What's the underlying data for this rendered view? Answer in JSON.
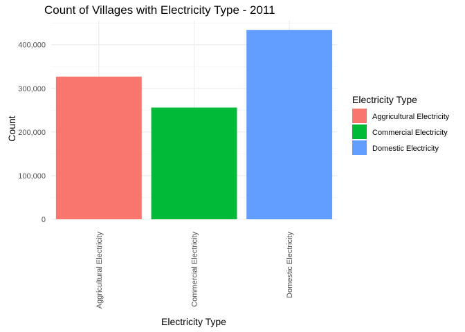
{
  "chart_data": {
    "type": "bar",
    "title": "Count of Villages with Electricity Type - 2011",
    "xlabel": "Electricity Type",
    "ylabel": "Count",
    "categories": [
      "Aggricultural Electricity",
      "Commercial Electricity",
      "Domestic Electricity"
    ],
    "values": [
      327000,
      256000,
      434000
    ],
    "colors": [
      "#F8766D",
      "#00BA38",
      "#619CFF"
    ],
    "ylim": [
      0,
      455000
    ],
    "yticks": [
      0,
      100000,
      200000,
      300000,
      400000
    ],
    "ytick_labels": [
      "0",
      "100,000",
      "200,000",
      "300,000",
      "400,000"
    ],
    "grid": true,
    "legend": {
      "title": "Electricity Type",
      "position": "right",
      "items": [
        "Aggricultural Electricity",
        "Commercial Electricity",
        "Domestic Electricity"
      ]
    }
  }
}
